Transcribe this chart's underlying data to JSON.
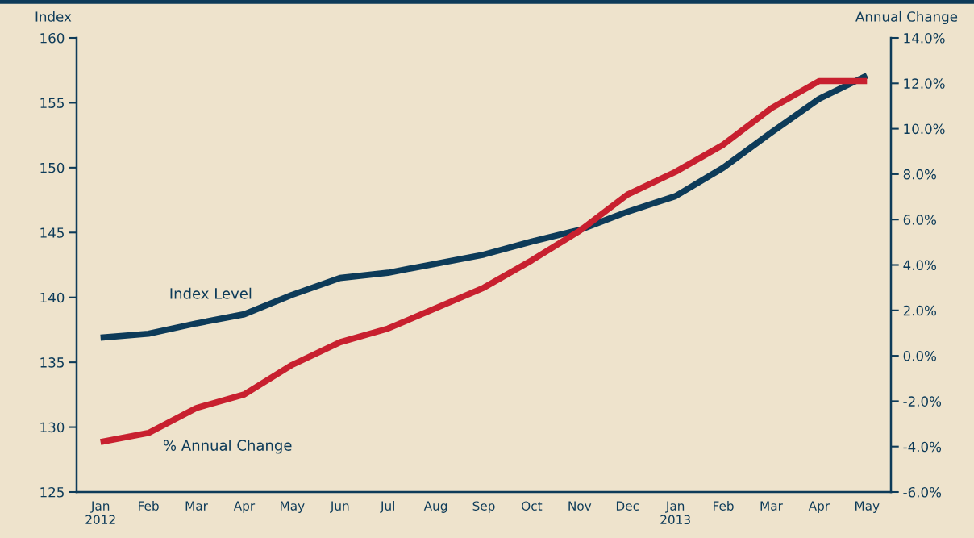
{
  "chart_data": {
    "type": "line",
    "ylabel": "Index",
    "y2label": "Annual Change",
    "categories": [
      "Jan\n2012",
      "Feb",
      "Mar",
      "Apr",
      "May",
      "Jun",
      "Jul",
      "Aug",
      "Sep",
      "Oct",
      "Nov",
      "Dec",
      "Jan\n2013",
      "Feb",
      "Mar",
      "Apr",
      "May"
    ],
    "series": [
      {
        "name": "Index Level",
        "color": "#0d3b59",
        "values": [
          136.9,
          137.2,
          138.0,
          138.7,
          140.2,
          141.5,
          141.9,
          142.6,
          143.3,
          144.3,
          145.2,
          146.6,
          147.8,
          150.0,
          152.7,
          155.3,
          157.1
        ]
      },
      {
        "name": "% Annual Change",
        "color": "#c8202f",
        "axis": "y2",
        "values": [
          -3.8,
          -3.4,
          -2.3,
          -1.7,
          -0.4,
          0.6,
          1.2,
          2.1,
          3.0,
          4.2,
          5.5,
          7.1,
          8.1,
          9.3,
          10.9,
          12.1,
          12.1
        ]
      }
    ],
    "ylim": [
      125,
      160
    ],
    "yticks": [
      125,
      130,
      135,
      140,
      145,
      150,
      155,
      160
    ],
    "y2lim": [
      -6,
      14
    ],
    "y2ticks": [
      {
        "value": -6,
        "label": "-6.0%"
      },
      {
        "value": -4,
        "label": "-4.0%"
      },
      {
        "value": -2,
        "label": "-2.0%"
      },
      {
        "value": 0,
        "label": "0.0%"
      },
      {
        "value": 2,
        "label": "2.0%"
      },
      {
        "value": 4,
        "label": "4.0%"
      },
      {
        "value": 6,
        "label": "6.0%"
      },
      {
        "value": 8,
        "label": "8.0%"
      },
      {
        "value": 10,
        "label": "10.0%"
      },
      {
        "value": 12,
        "label": "12.0%"
      },
      {
        "value": 14,
        "label": "14.0%"
      }
    ],
    "grid": false,
    "legend": false,
    "line_style": "solid",
    "marker": "none"
  }
}
